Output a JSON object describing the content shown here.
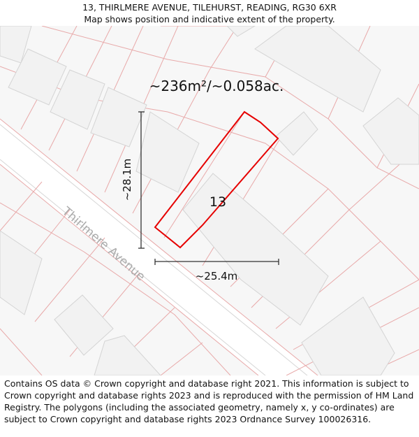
{
  "header": {
    "address": "13, THIRLMERE AVENUE, TILEHURST, READING, RG30 6XR",
    "subtitle": "Map shows position and indicative extent of the property."
  },
  "map": {
    "area_label": "~236m²/~0.058ac.",
    "plot_number": "13",
    "street_name": "Thirlmere Avenue",
    "height_measure": "~28.1m",
    "width_measure": "~25.4m",
    "colors": {
      "boundary": "#e8a9a9",
      "building_fill": "#f2f2f2",
      "building_stroke": "#d4d4d4",
      "road_fill": "#ffffff",
      "background": "#f7f7f7",
      "property_outline": "#e60000",
      "measure_line": "#333333"
    }
  },
  "footer": {
    "attribution": "Contains OS data © Crown copyright and database right 2021. This information is subject to Crown copyright and database rights 2023 and is reproduced with the permission of HM Land Registry. The polygons (including the associated geometry, namely x, y co-ordinates) are subject to Crown copyright and database rights 2023 Ordnance Survey 100026316."
  }
}
